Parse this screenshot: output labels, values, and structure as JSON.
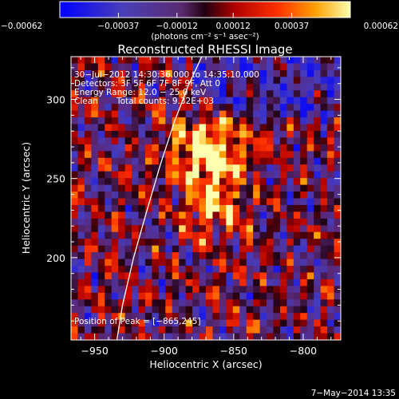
{
  "chart_data": {
    "type": "heatmap",
    "title": "Reconstructed RHESSI Image",
    "xlabel": "Heliocentric X (arcsec)",
    "ylabel": "Heliocentric Y (arcsec)",
    "xlim": [
      -967,
      -773
    ],
    "ylim": [
      148,
      327
    ],
    "xticks": [
      -950,
      -900,
      -850,
      -800
    ],
    "xtick_labels": [
      "−950",
      "−900",
      "−850",
      "−800"
    ],
    "yticks": [
      200,
      250,
      300
    ],
    "ytick_labels": [
      "200",
      "250",
      "300"
    ],
    "colorbar": {
      "min": -0.00062,
      "max": 0.00062,
      "ticks": [
        -0.00062,
        -0.00037,
        -0.00012,
        0.00012,
        0.00037,
        0.00062
      ],
      "tick_labels": [
        "−0.00062",
        "−0.00037",
        "−0.00012",
        "0.00012",
        "0.00037",
        "0.00062"
      ],
      "unit_label": "(photons cm⁻² s⁻¹ asec⁻²)"
    },
    "annotations": {
      "time_range": "30−Jul−2012 14:30:36.000 to 14:35:10.000",
      "detectors": "Detectors: 3F 5F 6F 7F 8F 9F, Att 0",
      "energy_range": "Energy Range: 12.0 − 25.0 keV",
      "clean": "Clean",
      "total_counts": "Total counts: 9.32E+03",
      "peak": "Position of Peak = [−865,245]"
    },
    "peak_position": [
      -865,
      245
    ],
    "limb_curve": {
      "x": [
        -934,
        -930,
        -922,
        -913,
        -903,
        -893,
        -883,
        -873
      ],
      "y": [
        148,
        170,
        200,
        228,
        258,
        285,
        308,
        327
      ]
    }
  },
  "footer": {
    "date": "7−May−2014 13:35"
  },
  "colors": {
    "background": "#000000",
    "text": "#ffffff",
    "limb": "#ffffff"
  }
}
